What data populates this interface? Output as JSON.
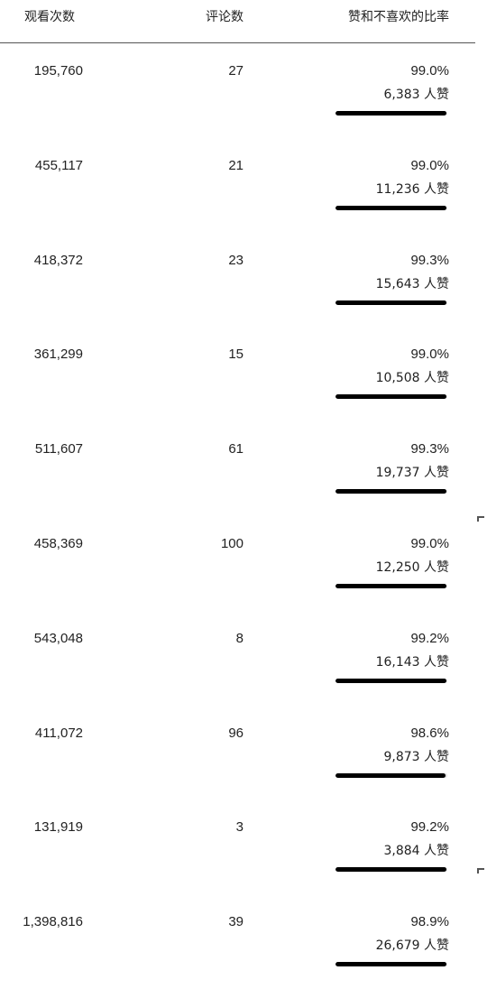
{
  "table": {
    "headers": {
      "views": "观看次数",
      "comments": "评论数",
      "ratio": "赞和不喜欢的比率"
    },
    "rows": [
      {
        "views": "195,760",
        "comments": "27",
        "ratio": "99.0%",
        "likes": "6,383 人赞",
        "ratio_value": 99.0
      },
      {
        "views": "455,117",
        "comments": "21",
        "ratio": "99.0%",
        "likes": "11,236 人赞",
        "ratio_value": 99.0
      },
      {
        "views": "418,372",
        "comments": "23",
        "ratio": "99.3%",
        "likes": "15,643 人赞",
        "ratio_value": 99.3
      },
      {
        "views": "361,299",
        "comments": "15",
        "ratio": "99.0%",
        "likes": "10,508 人赞",
        "ratio_value": 99.0
      },
      {
        "views": "511,607",
        "comments": "61",
        "ratio": "99.3%",
        "likes": "19,737 人赞",
        "ratio_value": 99.3
      },
      {
        "views": "458,369",
        "comments": "100",
        "ratio": "99.0%",
        "likes": "12,250 人赞",
        "ratio_value": 99.0
      },
      {
        "views": "543,048",
        "comments": "8",
        "ratio": "99.2%",
        "likes": "16,143 人赞",
        "ratio_value": 99.2
      },
      {
        "views": "411,072",
        "comments": "96",
        "ratio": "98.6%",
        "likes": "9,873 人赞",
        "ratio_value": 98.6
      },
      {
        "views": "131,919",
        "comments": "3",
        "ratio": "99.2%",
        "likes": "3,884 人赞",
        "ratio_value": 99.2
      },
      {
        "views": "1,398,816",
        "comments": "39",
        "ratio": "98.9%",
        "likes": "26,679 人赞",
        "ratio_value": 98.9
      }
    ]
  },
  "colors": {
    "bar_fill": "#000000",
    "bar_track": "#e0e0e0",
    "text": "#222222",
    "divider": "#555555"
  }
}
